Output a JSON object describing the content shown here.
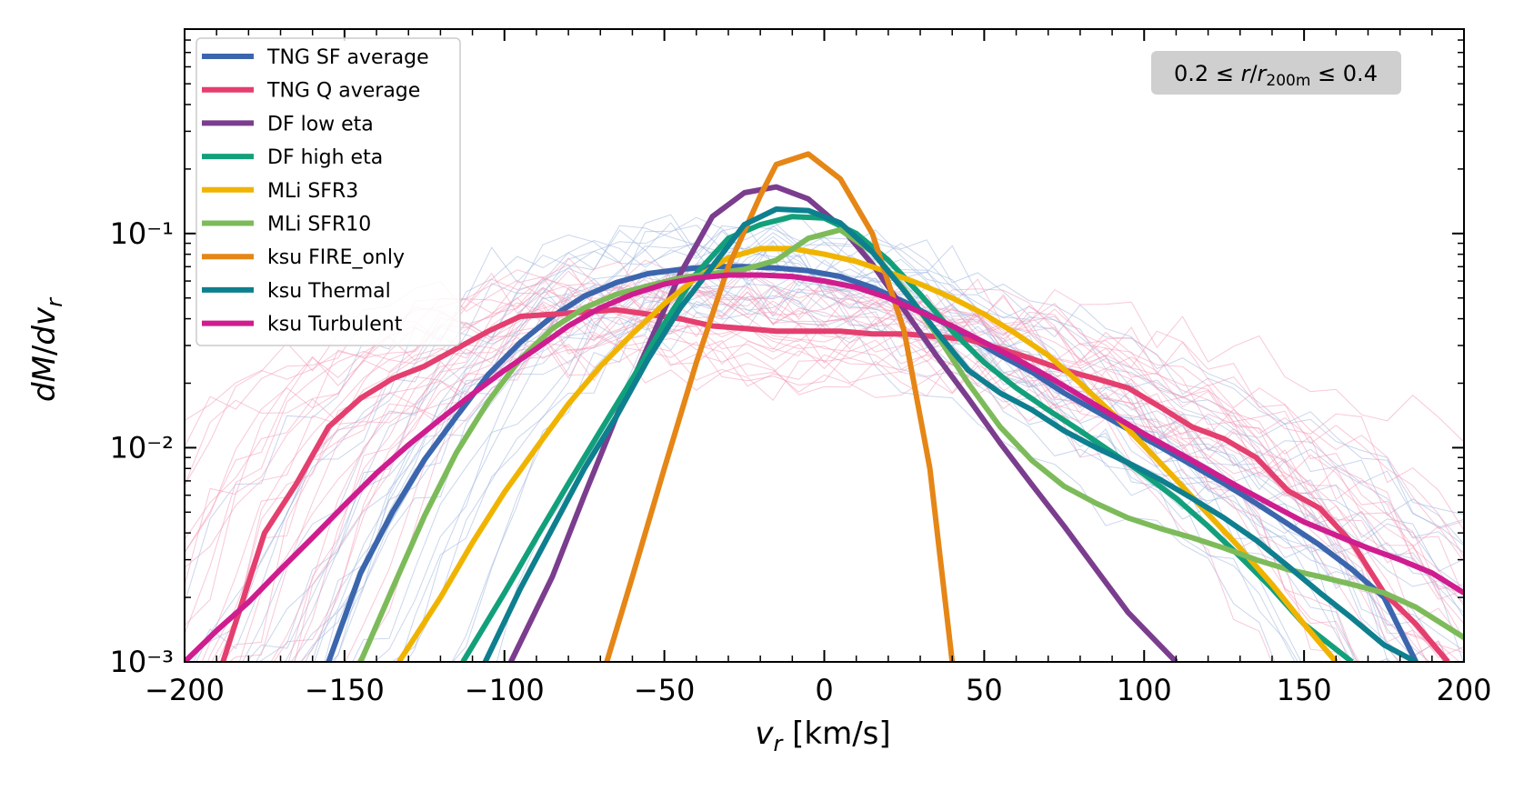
{
  "chart_data": {
    "type": "line",
    "xlabel": "v_r [km/s]",
    "ylabel": "dM/dv_r",
    "xlim": [
      -200,
      200
    ],
    "ylim": [
      0.001,
      0.9
    ],
    "yscale": "log",
    "x_ticks": [
      -200,
      -150,
      -100,
      -50,
      0,
      50,
      100,
      150,
      200
    ],
    "x_tick_labels": [
      "−200",
      "−150",
      "−100",
      "−50",
      "0",
      "50",
      "100",
      "150",
      "200"
    ],
    "y_ticks": [
      0.001,
      0.01,
      0.1
    ],
    "y_tick_labels": [
      "10⁻³",
      "10⁻²",
      "10⁻¹"
    ],
    "annotation": "0.2 ≤ r/r_200m ≤ 0.4",
    "legend_position": "top-left",
    "grid": false,
    "series": [
      {
        "name": "TNG SF average",
        "color": "#3b66ad",
        "x": [
          -155,
          -145,
          -135,
          -125,
          -115,
          -105,
          -95,
          -85,
          -75,
          -65,
          -55,
          -45,
          -35,
          -25,
          -15,
          -5,
          5,
          15,
          25,
          35,
          45,
          55,
          65,
          75,
          85,
          95,
          105,
          115,
          125,
          135,
          145,
          155,
          165,
          175,
          185
        ],
        "y": [
          0.001,
          0.0026,
          0.005,
          0.0088,
          0.014,
          0.022,
          0.031,
          0.041,
          0.051,
          0.059,
          0.065,
          0.068,
          0.07,
          0.07,
          0.069,
          0.067,
          0.063,
          0.056,
          0.048,
          0.04,
          0.033,
          0.027,
          0.0225,
          0.018,
          0.0148,
          0.0122,
          0.0101,
          0.0083,
          0.0068,
          0.0055,
          0.0044,
          0.0035,
          0.0027,
          0.002,
          0.001
        ]
      },
      {
        "name": "TNG Q average",
        "color": "#e43f6f",
        "x": [
          -188,
          -175,
          -165,
          -155,
          -145,
          -135,
          -125,
          -115,
          -105,
          -95,
          -85,
          -75,
          -65,
          -55,
          -45,
          -35,
          -25,
          -15,
          -5,
          5,
          15,
          25,
          35,
          45,
          55,
          65,
          75,
          85,
          95,
          105,
          115,
          125,
          135,
          145,
          155,
          165,
          175,
          185,
          195
        ],
        "y": [
          0.001,
          0.004,
          0.0068,
          0.0125,
          0.017,
          0.021,
          0.024,
          0.029,
          0.035,
          0.041,
          0.042,
          0.043,
          0.044,
          0.042,
          0.04,
          0.037,
          0.036,
          0.035,
          0.035,
          0.035,
          0.034,
          0.034,
          0.033,
          0.032,
          0.029,
          0.026,
          0.023,
          0.021,
          0.019,
          0.0155,
          0.0125,
          0.011,
          0.009,
          0.0063,
          0.0052,
          0.0036,
          0.0021,
          0.0015,
          0.001
        ]
      },
      {
        "name": "DF low eta",
        "color": "#7b3d8e",
        "x": [
          -98,
          -85,
          -75,
          -65,
          -55,
          -45,
          -35,
          -25,
          -15,
          -5,
          5,
          15,
          25,
          35,
          45,
          55,
          65,
          75,
          85,
          95,
          110
        ],
        "y": [
          0.001,
          0.0025,
          0.006,
          0.014,
          0.03,
          0.065,
          0.12,
          0.155,
          0.165,
          0.145,
          0.108,
          0.072,
          0.044,
          0.027,
          0.017,
          0.0105,
          0.0067,
          0.0043,
          0.0027,
          0.0017,
          0.001
        ]
      },
      {
        "name": "DF high eta",
        "color": "#12a07b",
        "x": [
          -113,
          -100,
          -90,
          -80,
          -70,
          -60,
          -50,
          -40,
          -30,
          -20,
          -10,
          0,
          10,
          20,
          30,
          40,
          50,
          60,
          70,
          80,
          90,
          100,
          110,
          120,
          130,
          140,
          150,
          165
        ],
        "y": [
          0.001,
          0.0021,
          0.0038,
          0.0068,
          0.012,
          0.021,
          0.038,
          0.065,
          0.095,
          0.11,
          0.12,
          0.118,
          0.1,
          0.075,
          0.052,
          0.035,
          0.025,
          0.019,
          0.015,
          0.012,
          0.0095,
          0.0075,
          0.0058,
          0.0043,
          0.0031,
          0.0022,
          0.0015,
          0.001
        ]
      },
      {
        "name": "MLi SFR3",
        "color": "#f0b400",
        "x": [
          -133,
          -120,
          -110,
          -100,
          -90,
          -80,
          -70,
          -60,
          -50,
          -40,
          -30,
          -20,
          -10,
          0,
          10,
          20,
          30,
          40,
          50,
          60,
          70,
          80,
          90,
          100,
          110,
          120,
          130,
          140,
          150,
          160
        ],
        "y": [
          0.001,
          0.002,
          0.0036,
          0.0062,
          0.01,
          0.016,
          0.024,
          0.034,
          0.047,
          0.062,
          0.077,
          0.085,
          0.085,
          0.08,
          0.074,
          0.066,
          0.058,
          0.05,
          0.042,
          0.034,
          0.027,
          0.02,
          0.0145,
          0.0102,
          0.0071,
          0.0049,
          0.0034,
          0.0023,
          0.0015,
          0.001
        ]
      },
      {
        "name": "MLi SFR10",
        "color": "#7dbb5a",
        "x": [
          -145,
          -135,
          -125,
          -115,
          -105,
          -95,
          -85,
          -75,
          -65,
          -55,
          -45,
          -35,
          -25,
          -15,
          -5,
          5,
          15,
          25,
          35,
          45,
          55,
          65,
          75,
          85,
          95,
          105,
          115,
          125,
          135,
          145,
          155,
          165,
          175,
          185,
          200
        ],
        "y": [
          0.001,
          0.0022,
          0.0048,
          0.0095,
          0.0165,
          0.026,
          0.036,
          0.045,
          0.052,
          0.057,
          0.062,
          0.065,
          0.068,
          0.075,
          0.095,
          0.104,
          0.082,
          0.055,
          0.034,
          0.02,
          0.0125,
          0.0087,
          0.0066,
          0.0055,
          0.0047,
          0.0042,
          0.0038,
          0.0034,
          0.003,
          0.0027,
          0.0025,
          0.0023,
          0.0021,
          0.0018,
          0.0013
        ]
      },
      {
        "name": "ksu FIRE_only",
        "color": "#e58616",
        "x": [
          -68,
          -60,
          -50,
          -40,
          -30,
          -20,
          -15,
          -5,
          5,
          15,
          25,
          33,
          40
        ],
        "y": [
          0.001,
          0.0025,
          0.008,
          0.025,
          0.07,
          0.15,
          0.21,
          0.235,
          0.18,
          0.1,
          0.035,
          0.008,
          0.001
        ]
      },
      {
        "name": "ksu Thermal",
        "color": "#0e7f8e",
        "x": [
          -106,
          -95,
          -85,
          -75,
          -65,
          -55,
          -45,
          -35,
          -25,
          -15,
          -5,
          5,
          15,
          25,
          35,
          45,
          55,
          65,
          75,
          85,
          95,
          105,
          115,
          125,
          135,
          145,
          155,
          165,
          175,
          185
        ],
        "y": [
          0.001,
          0.0022,
          0.0042,
          0.008,
          0.014,
          0.026,
          0.045,
          0.07,
          0.11,
          0.13,
          0.128,
          0.112,
          0.082,
          0.054,
          0.035,
          0.023,
          0.018,
          0.015,
          0.012,
          0.01,
          0.0085,
          0.0071,
          0.0058,
          0.0047,
          0.0037,
          0.0028,
          0.0021,
          0.0016,
          0.0012,
          0.001
        ]
      },
      {
        "name": "ksu Turbulent",
        "color": "#cf1d8f",
        "x": [
          -200,
          -190,
          -180,
          -170,
          -160,
          -150,
          -140,
          -130,
          -120,
          -110,
          -100,
          -90,
          -80,
          -70,
          -60,
          -50,
          -40,
          -30,
          -20,
          -10,
          0,
          10,
          20,
          30,
          40,
          50,
          60,
          70,
          80,
          90,
          100,
          110,
          120,
          130,
          140,
          150,
          160,
          170,
          180,
          190,
          200
        ],
        "y": [
          0.001,
          0.0014,
          0.0019,
          0.0027,
          0.0038,
          0.0054,
          0.0076,
          0.0103,
          0.0136,
          0.0178,
          0.023,
          0.029,
          0.037,
          0.045,
          0.052,
          0.058,
          0.062,
          0.064,
          0.064,
          0.063,
          0.06,
          0.056,
          0.05,
          0.043,
          0.037,
          0.031,
          0.026,
          0.0215,
          0.0175,
          0.0142,
          0.0116,
          0.0096,
          0.0079,
          0.0065,
          0.0054,
          0.0045,
          0.0039,
          0.0034,
          0.003,
          0.0026,
          0.0021
        ]
      }
    ],
    "background_traces": {
      "description_colors": [
        "#9fb5dd",
        "#f39bb8"
      ],
      "count_per_group": 26
    }
  }
}
